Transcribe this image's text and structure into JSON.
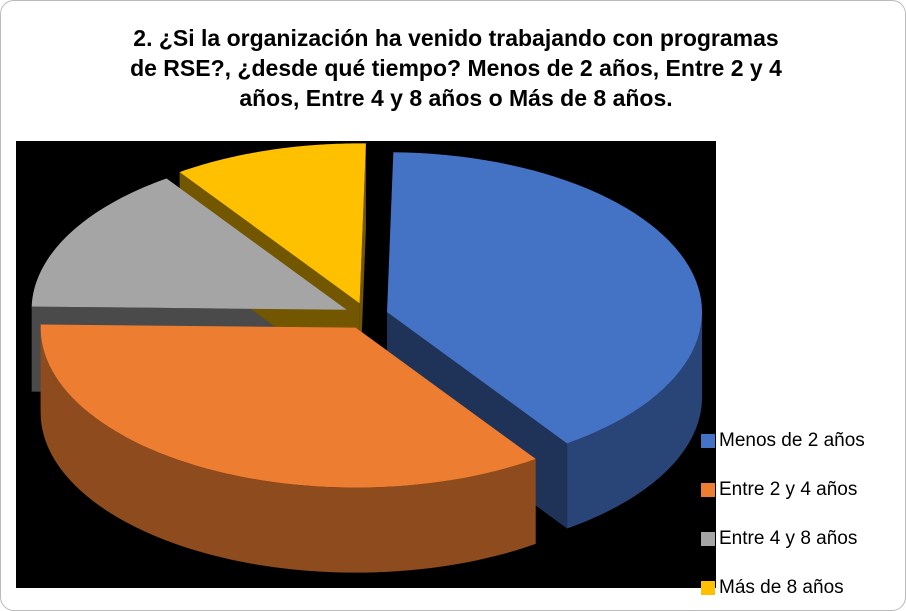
{
  "chart_data": {
    "type": "pie3d",
    "title": "2. ¿Si la organización ha venido trabajando con programas de RSE?, ¿desde qué tiempo? Menos de 2 años, Entre 2 y 4 años, Entre 4 y 8 años o Más de 8 años.",
    "categories": [
      "Menos de 2 años",
      "Entre 2 y 4 años",
      "Entre 4 y 8 años",
      "Más de 8 años"
    ],
    "values": [
      40,
      35,
      15,
      10
    ],
    "colors": [
      "#4472c4",
      "#ed7d31",
      "#a5a5a5",
      "#ffc000"
    ],
    "legend": "right"
  }
}
